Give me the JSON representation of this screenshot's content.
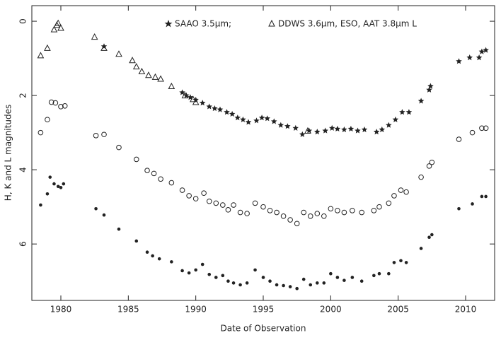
{
  "chart_data": {
    "type": "scatter",
    "xlabel": "Date of Observation",
    "ylabel": "H, K and L magnitudes",
    "annotations": [
      "SAAO 3.5μm;",
      "DDWS 3.6μm, ESO, AAT 3.8μm L"
    ],
    "xlim": [
      1977.85,
      2012.15
    ],
    "xticks": [
      1980,
      1985,
      1990,
      1995,
      2000,
      2005,
      2010
    ],
    "ylim": [
      7.52,
      -0.42
    ],
    "yticks": [
      0,
      2,
      4,
      6
    ],
    "series": [
      {
        "marker": "star",
        "color": "#222222",
        "x": [
          1983.2,
          1989.0,
          1989.3,
          1989.6,
          1990.0,
          1990.5,
          1991.0,
          1991.4,
          1991.8,
          1992.3,
          1992.7,
          1993.1,
          1993.5,
          1993.9,
          1994.5,
          1994.9,
          1995.3,
          1995.8,
          1996.3,
          1996.8,
          1997.4,
          1997.9,
          1998.4,
          1999.0,
          1999.6,
          2000.1,
          2000.5,
          2001.0,
          2001.5,
          2002.0,
          2002.5,
          2003.4,
          2003.8,
          2004.3,
          2004.8,
          2005.3,
          2005.8,
          2006.7,
          2007.3,
          2007.4,
          2009.5,
          2010.3,
          2011.0,
          2011.2,
          2011.5
        ],
        "values": [
          0.68,
          1.92,
          2.0,
          2.05,
          2.12,
          2.2,
          2.3,
          2.35,
          2.38,
          2.45,
          2.5,
          2.6,
          2.65,
          2.72,
          2.68,
          2.6,
          2.62,
          2.7,
          2.8,
          2.83,
          2.88,
          3.05,
          2.95,
          2.98,
          2.95,
          2.88,
          2.9,
          2.92,
          2.9,
          2.95,
          2.92,
          2.98,
          2.92,
          2.8,
          2.65,
          2.45,
          2.45,
          2.15,
          1.85,
          1.75,
          1.08,
          0.98,
          0.98,
          0.82,
          0.78
        ]
      },
      {
        "marker": "triangle",
        "color": "#222222",
        "x": [
          1978.5,
          1979.0,
          1979.5,
          1979.7,
          1979.8,
          1980.0,
          1982.5,
          1983.2,
          1984.3,
          1985.3,
          1985.6,
          1986.0,
          1986.5,
          1987.0,
          1987.4,
          1988.2,
          1989.2,
          1989.8,
          1990.0,
          1998.3
        ],
        "values": [
          0.92,
          0.72,
          0.22,
          0.1,
          0.05,
          0.18,
          0.42,
          0.72,
          0.88,
          1.05,
          1.22,
          1.35,
          1.45,
          1.5,
          1.55,
          1.75,
          2.0,
          2.1,
          2.18,
          2.95
        ]
      },
      {
        "marker": "open-circle",
        "color": "#222222",
        "x": [
          1978.5,
          1979.0,
          1979.3,
          1979.6,
          1980.0,
          1980.3,
          1982.6,
          1983.2,
          1984.3,
          1985.6,
          1986.4,
          1986.9,
          1987.4,
          1988.2,
          1989.0,
          1989.5,
          1990.0,
          1990.6,
          1991.0,
          1991.5,
          1992.0,
          1992.4,
          1992.8,
          1993.3,
          1993.8,
          1994.4,
          1995.0,
          1995.5,
          1996.0,
          1996.5,
          1997.0,
          1997.5,
          1998.0,
          1998.5,
          1999.0,
          1999.5,
          2000.0,
          2000.5,
          2001.0,
          2001.6,
          2002.3,
          2003.2,
          2003.6,
          2004.3,
          2004.7,
          2005.2,
          2005.6,
          2006.7,
          2007.3,
          2007.5,
          2009.5,
          2010.5,
          2011.2,
          2011.5
        ],
        "values": [
          3.0,
          2.65,
          2.18,
          2.2,
          2.3,
          2.28,
          3.08,
          3.05,
          3.4,
          3.72,
          4.02,
          4.1,
          4.25,
          4.35,
          4.55,
          4.7,
          4.78,
          4.63,
          4.85,
          4.9,
          4.95,
          5.08,
          4.95,
          5.15,
          5.18,
          4.9,
          5.0,
          5.1,
          5.15,
          5.25,
          5.35,
          5.45,
          5.15,
          5.25,
          5.18,
          5.25,
          5.05,
          5.1,
          5.15,
          5.1,
          5.15,
          5.1,
          5.0,
          4.9,
          4.7,
          4.55,
          4.6,
          4.2,
          3.9,
          3.8,
          3.18,
          3.0,
          2.88,
          2.88
        ]
      },
      {
        "marker": "filled-circle",
        "color": "#222222",
        "x": [
          1978.5,
          1979.0,
          1979.2,
          1979.5,
          1979.8,
          1980.0,
          1980.2,
          1982.6,
          1983.2,
          1984.3,
          1985.6,
          1986.4,
          1986.8,
          1987.3,
          1988.2,
          1989.0,
          1989.5,
          1990.0,
          1990.5,
          1991.0,
          1991.5,
          1992.0,
          1992.4,
          1992.8,
          1993.3,
          1993.8,
          1994.4,
          1995.0,
          1995.5,
          1996.0,
          1996.5,
          1997.0,
          1997.5,
          1998.0,
          1998.5,
          1999.0,
          1999.5,
          2000.0,
          2000.5,
          2001.0,
          2001.6,
          2002.3,
          2003.2,
          2003.6,
          2004.3,
          2004.7,
          2005.2,
          2005.6,
          2006.7,
          2007.3,
          2007.5,
          2009.5,
          2010.5,
          2011.2,
          2011.5
        ],
        "values": [
          4.95,
          4.65,
          4.2,
          4.38,
          4.45,
          4.48,
          4.38,
          5.05,
          5.22,
          5.6,
          5.92,
          6.22,
          6.32,
          6.4,
          6.48,
          6.72,
          6.78,
          6.7,
          6.55,
          6.82,
          6.9,
          6.85,
          7.0,
          7.05,
          7.1,
          7.05,
          6.7,
          6.9,
          7.0,
          7.1,
          7.12,
          7.15,
          7.2,
          6.95,
          7.1,
          7.05,
          7.05,
          6.8,
          6.9,
          6.98,
          6.9,
          7.0,
          6.85,
          6.8,
          6.8,
          6.5,
          6.45,
          6.5,
          6.12,
          5.82,
          5.75,
          5.05,
          4.92,
          4.72,
          4.72
        ]
      }
    ]
  }
}
